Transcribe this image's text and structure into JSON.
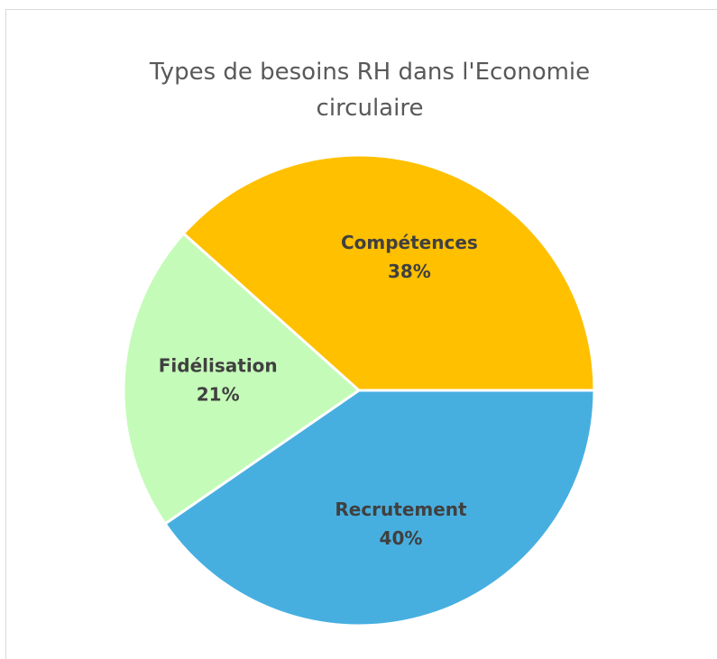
{
  "chart_data": {
    "type": "pie",
    "title": "Types de besoins RH dans l'Economie circulaire",
    "categories": [
      "Recrutement",
      "Fidélisation",
      "Compétences"
    ],
    "values": [
      40,
      21,
      38
    ],
    "value_labels": [
      "40%",
      "21%",
      "38%"
    ],
    "colors": [
      "#47afe0",
      "#c4fbb8",
      "#ffc000"
    ]
  }
}
